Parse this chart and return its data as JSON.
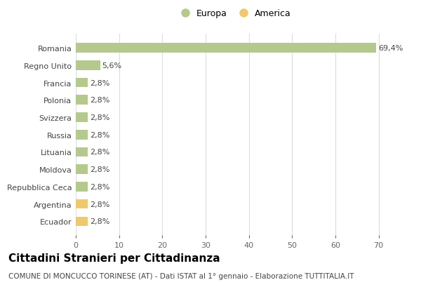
{
  "categories": [
    "Ecuador",
    "Argentina",
    "Repubblica Ceca",
    "Moldova",
    "Lituania",
    "Russia",
    "Svizzera",
    "Polonia",
    "Francia",
    "Regno Unito",
    "Romania"
  ],
  "values": [
    2.8,
    2.8,
    2.8,
    2.8,
    2.8,
    2.8,
    2.8,
    2.8,
    2.8,
    5.6,
    69.4
  ],
  "colors": [
    "#f0c96e",
    "#f0c96e",
    "#b5c98e",
    "#b5c98e",
    "#b5c98e",
    "#b5c98e",
    "#b5c98e",
    "#b5c98e",
    "#b5c98e",
    "#b5c98e",
    "#b5c98e"
  ],
  "labels": [
    "2,8%",
    "2,8%",
    "2,8%",
    "2,8%",
    "2,8%",
    "2,8%",
    "2,8%",
    "2,8%",
    "2,8%",
    "5,6%",
    "69,4%"
  ],
  "xlim": [
    0,
    73
  ],
  "xticks": [
    0,
    10,
    20,
    30,
    40,
    50,
    60,
    70
  ],
  "title": "Cittadini Stranieri per Cittadinanza",
  "subtitle": "COMUNE DI MONCUCCO TORINESE (AT) - Dati ISTAT al 1° gennaio - Elaborazione TUTTITALIA.IT",
  "legend_europa_color": "#b5c98e",
  "legend_america_color": "#f0c96e",
  "background_color": "#ffffff",
  "grid_color": "#dddddd",
  "bar_height": 0.55,
  "title_fontsize": 11,
  "subtitle_fontsize": 7.5,
  "label_fontsize": 8,
  "tick_fontsize": 8,
  "legend_fontsize": 9
}
